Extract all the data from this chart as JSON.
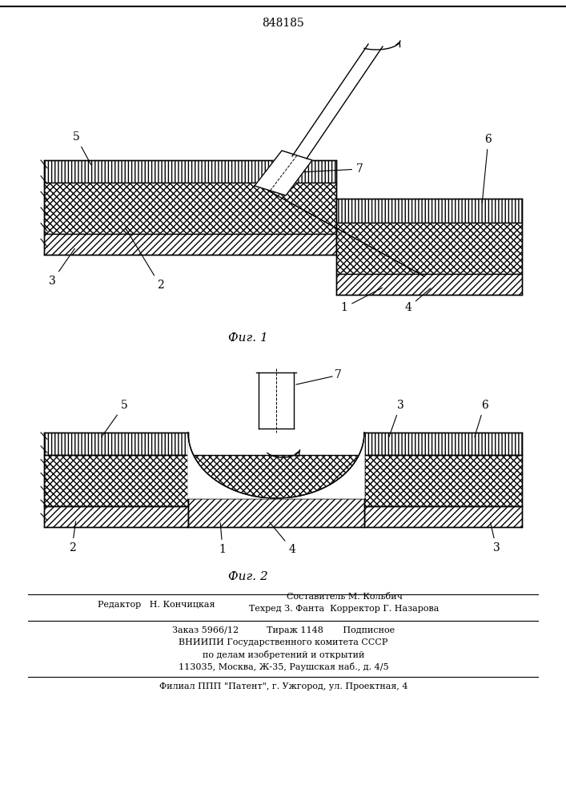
{
  "patent_number": "848185",
  "fig1_label": "Фиг. 1",
  "fig2_label": "Фиг. 2",
  "footer_line1_left": "Редактор   Н. Кончицкая",
  "footer_line1_right": "Составитель М. Кольбич\nТехред З. Фанта  Корректор Г. Назарова",
  "footer_line2": "Заказ 5966/12          Тираж 1148       Подписное",
  "footer_line3": "ВНИИПИ Государственного комитета СССР",
  "footer_line4": "по делам изобретений и открытий",
  "footer_line5": "113035, Москва, Ж-35, Раушская наб., д. 4/5",
  "footer_line6": "Филиал ППП \"Патент\", г. Ужгород, ул. Проектная, 4",
  "bg_color": "#ffffff",
  "line_color": "#000000"
}
